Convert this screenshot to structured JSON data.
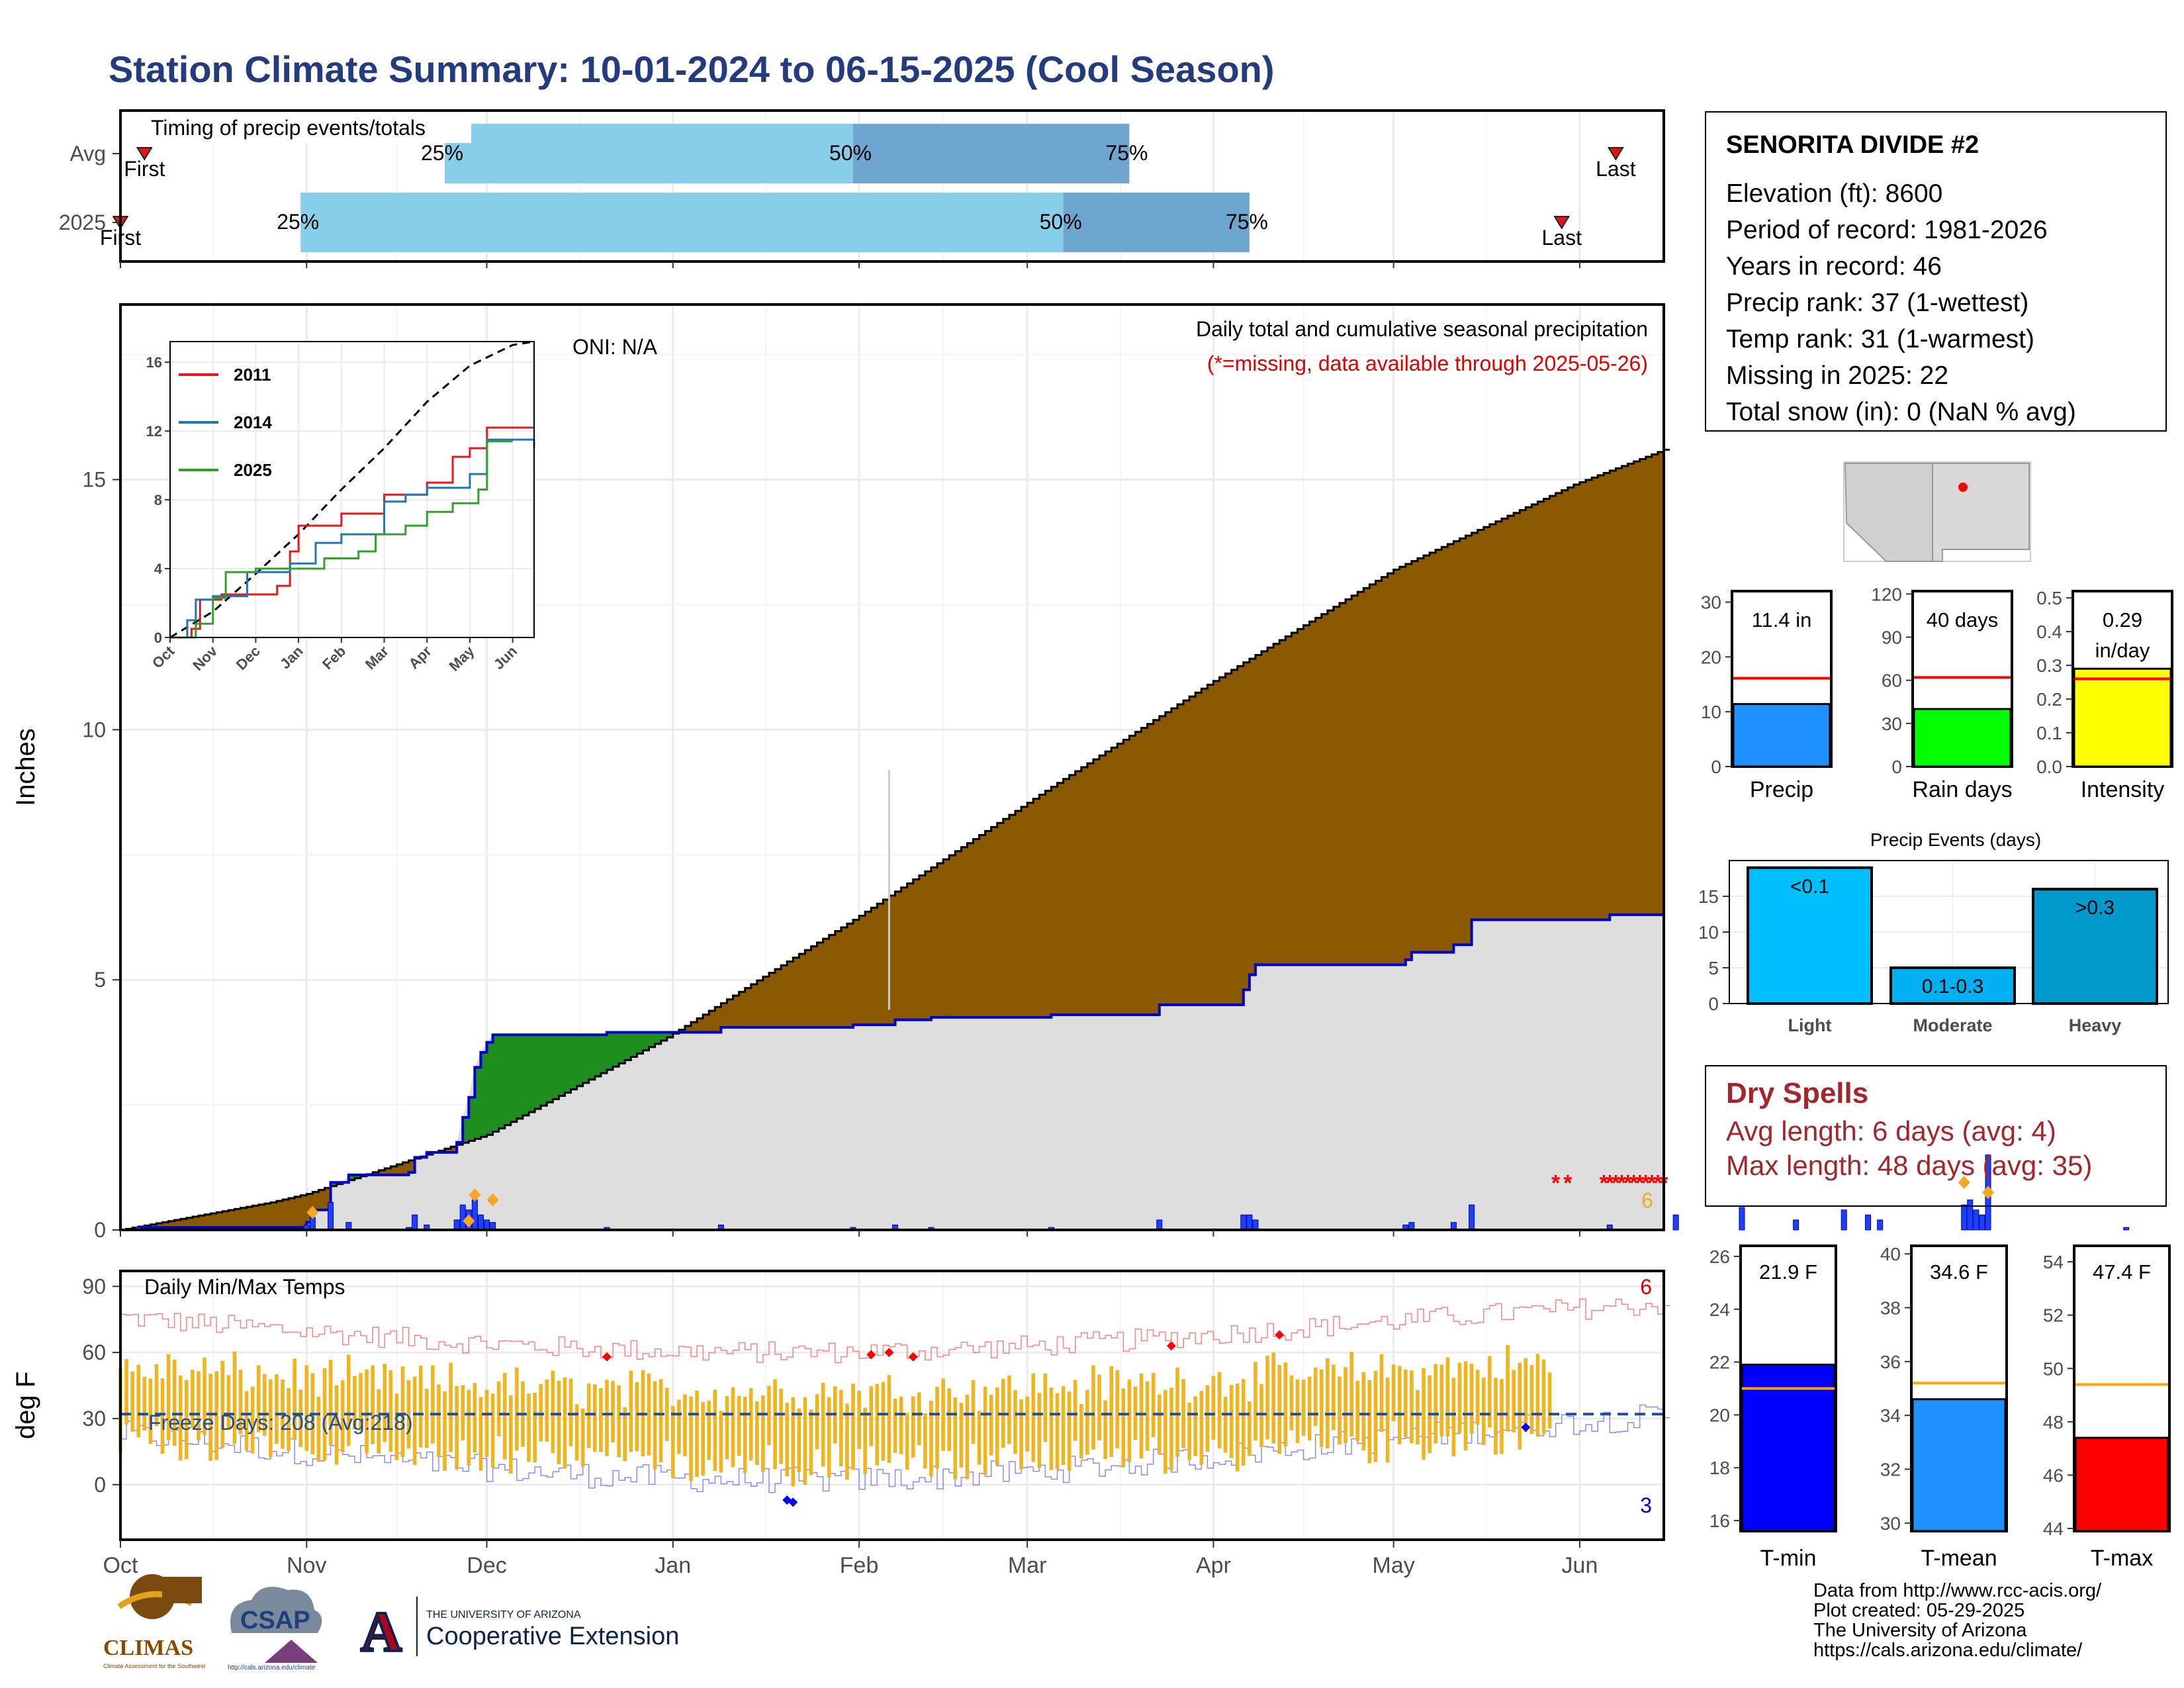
{
  "title": "Station Climate Summary: 10-01-2024 to 06-15-2025 (Cool Season)",
  "timing": {
    "title": "Timing of precip events/totals",
    "rows": [
      {
        "label": "Avg",
        "first": "2024-10-05",
        "p25": "2024-11-24",
        "p50": "2025-01-31",
        "p75": "2025-03-18",
        "last": "2025-06-07",
        "first_label": "First",
        "last_label": "Last"
      },
      {
        "label": "2025",
        "first": "2024-10-01",
        "p25": "2024-10-31",
        "p50": "2025-03-07",
        "p75": "2025-04-07",
        "last": "2025-05-29",
        "first_label": "First",
        "last_label": "Last"
      }
    ],
    "pct_labels": [
      "25%",
      "50%",
      "75%"
    ],
    "colors": {
      "light": "#87ceeb",
      "dark": "#6fa6cf",
      "marker": "#d7191c"
    }
  },
  "precip": {
    "ylabel": "Inches",
    "yticks": [
      0,
      5,
      10,
      15
    ],
    "ylim": [
      0,
      18.5
    ],
    "note_title": "Daily total and cumulative seasonal precipitation",
    "note_missing": "(*=missing, data available through 2025-05-26)",
    "oni": "ONI: N/A",
    "missing_count": "6",
    "colors": {
      "avg_fill": "#8b5a00",
      "above_fill": "#1e8e1e",
      "base_fill": "#dedede",
      "obs_line": "#0000cd",
      "bar": "#1f3fff",
      "missing": "#ff0000",
      "extreme": "#f5a623"
    }
  },
  "temps": {
    "ylabel": "deg F",
    "yticks": [
      0,
      30,
      60,
      90
    ],
    "ylim": [
      -25,
      97
    ],
    "title": "Daily Min/Max Temps",
    "freeze_label": "Freeze Days: 208 (Avg:218)",
    "freeze_line": 32,
    "record_high_count": "6",
    "record_low_count": "3",
    "colors": {
      "bar": "#f0b41f",
      "max_line": "#ff8080",
      "min_line": "#8888ff",
      "freeze": "#1f4e99"
    }
  },
  "x_axis": {
    "month_labels": [
      "Oct",
      "Nov",
      "Dec",
      "Jan",
      "Feb",
      "Mar",
      "Apr",
      "May",
      "Jun"
    ],
    "start": "2024-10-01",
    "end": "2025-06-15"
  },
  "station": {
    "name": "SENORITA DIVIDE #2",
    "lines": [
      "Elevation (ft): 8600",
      "Period of record: 1981-2026",
      "Years in record: 46",
      "Precip rank: 37 (1-wettest)",
      "Temp rank: 31 (1-warmest)",
      "Missing in 2025: 22",
      "Total snow (in): 0 (NaN % avg)"
    ]
  },
  "dry_spells": {
    "title": "Dry Spells",
    "avg": "Avg length: 6 days (avg: 4)",
    "max": "Max length: 48 days (avg: 35)"
  },
  "inset": {
    "yticks": [
      "0",
      "4",
      "8",
      "12",
      "16"
    ],
    "months": [
      "Oct",
      "Nov",
      "Dec",
      "Jan",
      "Feb",
      "Mar",
      "Apr",
      "May",
      "Jun"
    ],
    "series": [
      {
        "name": "2011",
        "color": "#e31a1c"
      },
      {
        "name": "2014",
        "color": "#1f78b4"
      },
      {
        "name": "2025",
        "color": "#33a02c"
      }
    ]
  },
  "summary_bars": [
    {
      "label": "Precip",
      "value": 11.4,
      "value_label": "11.4 in",
      "value_label2": "",
      "avg": 16.1,
      "ymax": 32,
      "yticks": [
        "0",
        "10",
        "20",
        "30"
      ],
      "tickvals": [
        0,
        10,
        20,
        30
      ],
      "color": "#1e90ff"
    },
    {
      "label": "Rain days",
      "value": 40,
      "value_label": "40 days",
      "value_label2": "",
      "avg": 62,
      "ymax": 122,
      "yticks": [
        "0",
        "30",
        "60",
        "90",
        "120"
      ],
      "tickvals": [
        0,
        30,
        60,
        90,
        120
      ],
      "color": "#00ff00"
    },
    {
      "label": "Intensity",
      "value": 0.29,
      "value_label": "0.29",
      "value_label2": "in/day",
      "avg": 0.26,
      "ymax": 0.52,
      "yticks": [
        "0.0",
        "0.1",
        "0.2",
        "0.3",
        "0.4",
        "0.5"
      ],
      "tickvals": [
        0,
        0.1,
        0.2,
        0.3,
        0.4,
        0.5
      ],
      "color": "#ffff00"
    }
  ],
  "events": {
    "title": "Precip Events (days)",
    "categories": [
      "Light",
      "Moderate",
      "Heavy"
    ],
    "values": [
      19,
      5,
      16
    ],
    "labels": [
      "<0.1",
      "0.1-0.3",
      ">0.3"
    ],
    "colors": [
      "#00bfff",
      "#00b0f0",
      "#0099cc"
    ],
    "yticks": [
      "0",
      "5",
      "10",
      "15"
    ],
    "tickvals": [
      0,
      5,
      10,
      15
    ],
    "ymax": 20
  },
  "temp_bars": [
    {
      "label": "T-min",
      "value": 21.9,
      "value_label": "21.9 F",
      "avg": 21.0,
      "ymin": 15.6,
      "ymax": 26.4,
      "yticks": [
        "16",
        "18",
        "20",
        "22",
        "24",
        "26"
      ],
      "tickvals": [
        16,
        18,
        20,
        22,
        24,
        26
      ],
      "color": "#0000ff"
    },
    {
      "label": "T-mean",
      "value": 34.6,
      "value_label": "34.6 F",
      "avg": 35.2,
      "ymin": 29.7,
      "ymax": 40.3,
      "yticks": [
        "30",
        "32",
        "34",
        "36",
        "38",
        "40"
      ],
      "tickvals": [
        30,
        32,
        34,
        36,
        38,
        40
      ],
      "color": "#1e90ff"
    },
    {
      "label": "T-max",
      "value": 47.4,
      "value_label": "47.4 F",
      "avg": 49.4,
      "ymin": 43.9,
      "ymax": 54.6,
      "yticks": [
        "44",
        "46",
        "48",
        "50",
        "52",
        "54"
      ],
      "tickvals": [
        44,
        46,
        48,
        50,
        52,
        54
      ],
      "color": "#ff0000"
    }
  ],
  "credits": [
    "Data from http://www.rcc-acis.org/",
    "Plot created: 05-29-2025",
    "The University of Arizona",
    "https://cals.arizona.edu/climate/"
  ],
  "logos": {
    "climas": "CLIMAS",
    "climas_sub": "Climate Assessment for the Southwest",
    "csap": "CSAP",
    "csap_url": "http://cals.arizona.edu/climate",
    "ua_a": "A",
    "ua_line1": "THE UNIVERSITY OF ARIZONA",
    "ua_line2": "Cooperative Extension"
  }
}
